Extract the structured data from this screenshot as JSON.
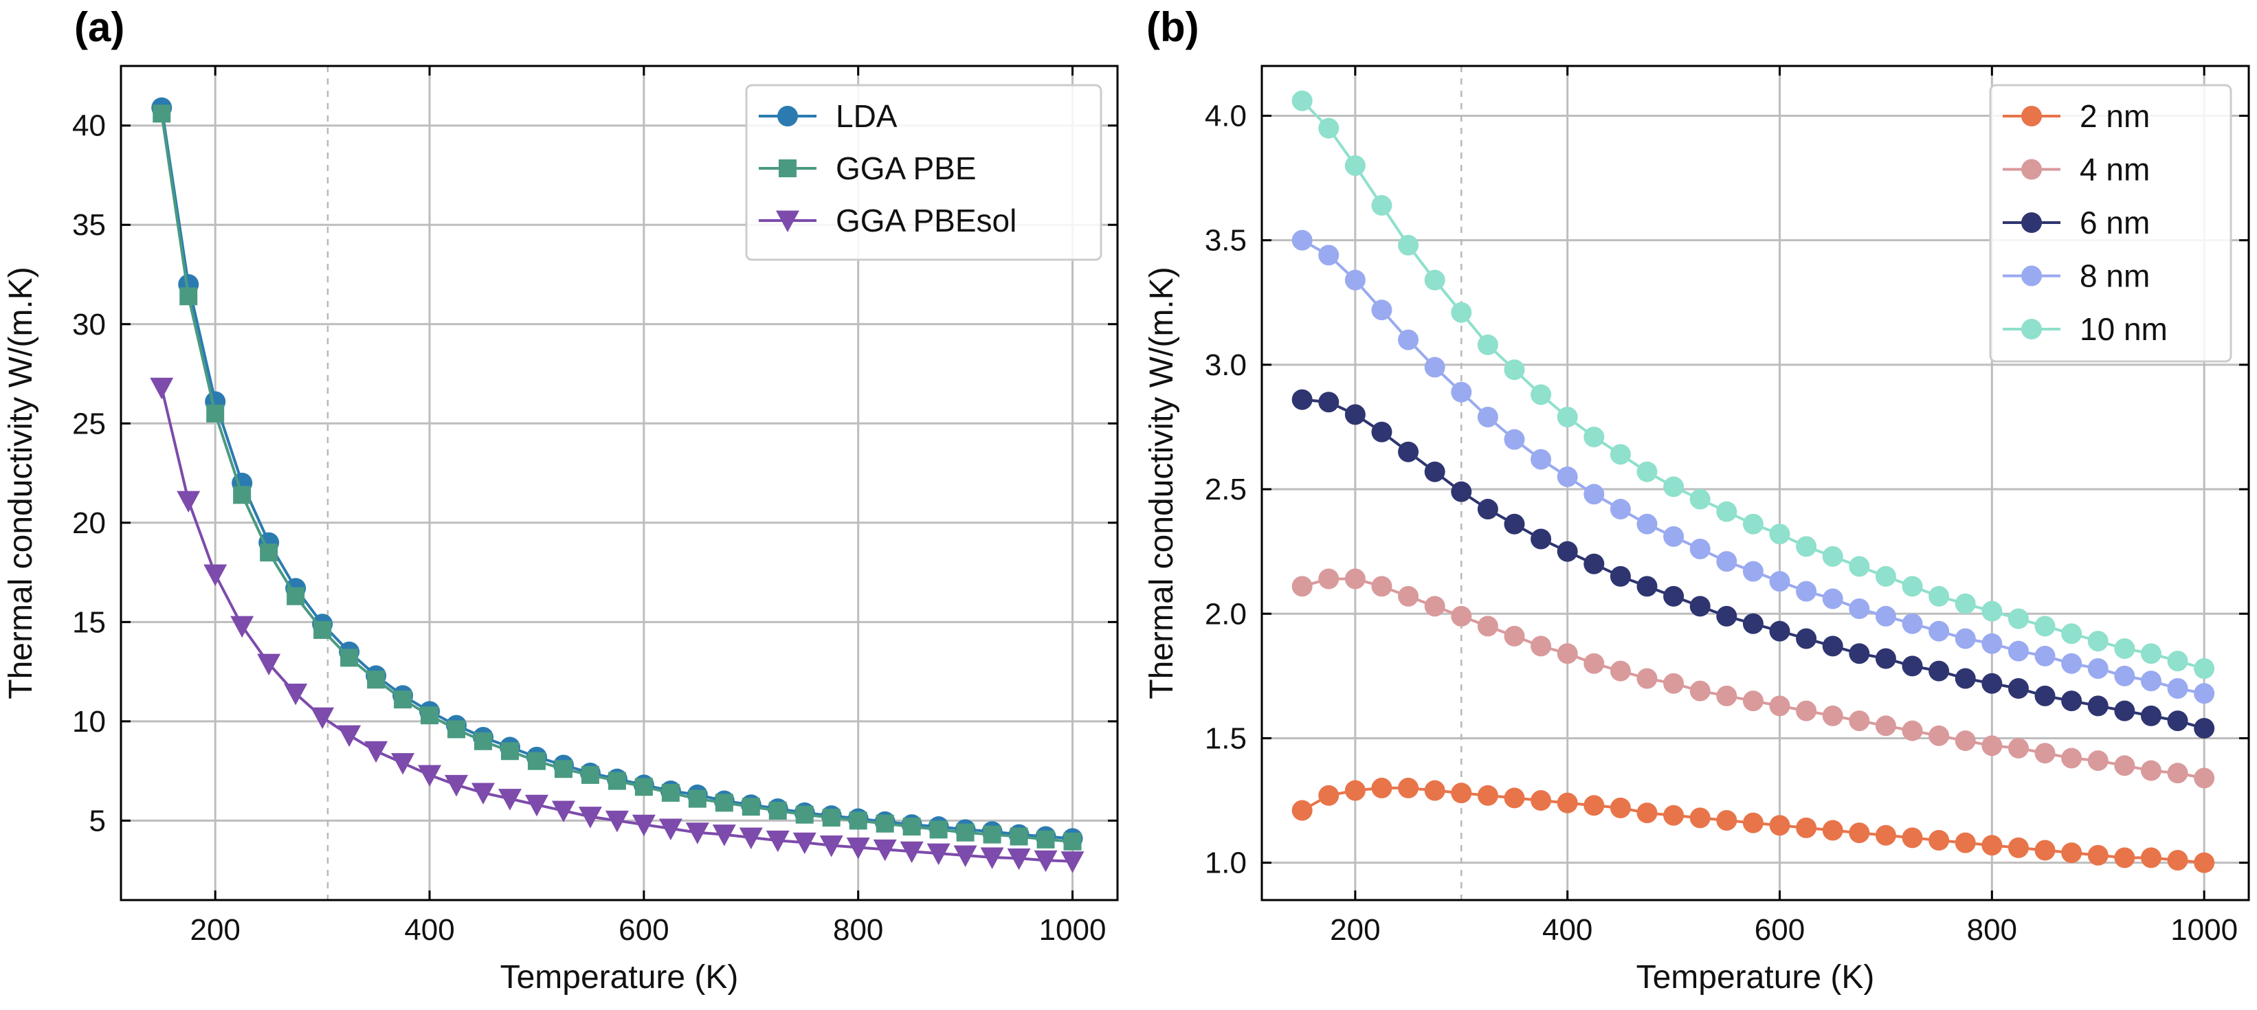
{
  "chart_data": [
    {
      "panel_label": "(a)",
      "type": "line",
      "xlabel": "Temperature (K)",
      "ylabel": "Thermal conductivity W/(m.K)",
      "xlim": [
        112,
        1042
      ],
      "ylim": [
        1,
        43
      ],
      "xticks": [
        200,
        400,
        600,
        800,
        1000
      ],
      "yticks": [
        5,
        10,
        15,
        20,
        25,
        30,
        35,
        40
      ],
      "ref_line_x": 305,
      "legend_position": "top-right",
      "x": [
        150,
        175,
        200,
        225,
        250,
        275,
        300,
        325,
        350,
        375,
        400,
        425,
        450,
        475,
        500,
        525,
        550,
        575,
        600,
        625,
        650,
        675,
        700,
        725,
        750,
        775,
        800,
        825,
        850,
        875,
        900,
        925,
        950,
        975,
        1000
      ],
      "series": [
        {
          "name": "LDA",
          "color": "#2b7bb0",
          "marker": "circle",
          "values": [
            40.9,
            32.0,
            26.1,
            22.0,
            19.0,
            16.7,
            14.9,
            13.5,
            12.3,
            11.3,
            10.5,
            9.8,
            9.2,
            8.7,
            8.2,
            7.8,
            7.4,
            7.1,
            6.8,
            6.5,
            6.3,
            6.0,
            5.8,
            5.6,
            5.4,
            5.25,
            5.1,
            4.95,
            4.8,
            4.7,
            4.55,
            4.45,
            4.3,
            4.2,
            4.1
          ]
        },
        {
          "name": "GGA PBE",
          "color": "#4a9a82",
          "marker": "square",
          "values": [
            40.6,
            31.4,
            25.5,
            21.4,
            18.5,
            16.3,
            14.6,
            13.2,
            12.1,
            11.1,
            10.3,
            9.6,
            9.0,
            8.5,
            8.0,
            7.6,
            7.3,
            7.0,
            6.7,
            6.4,
            6.1,
            5.9,
            5.7,
            5.5,
            5.3,
            5.15,
            5.0,
            4.85,
            4.7,
            4.55,
            4.4,
            4.3,
            4.2,
            4.05,
            3.95
          ]
        },
        {
          "name": "GGA PBEsol",
          "color": "#7d4bab",
          "marker": "triangle-down",
          "values": [
            26.8,
            21.1,
            17.4,
            14.8,
            12.9,
            11.4,
            10.2,
            9.3,
            8.5,
            7.9,
            7.3,
            6.8,
            6.4,
            6.1,
            5.8,
            5.5,
            5.2,
            5.0,
            4.8,
            4.6,
            4.4,
            4.3,
            4.15,
            4.0,
            3.9,
            3.75,
            3.65,
            3.55,
            3.45,
            3.35,
            3.25,
            3.15,
            3.1,
            3.0,
            2.95
          ]
        }
      ]
    },
    {
      "panel_label": "(b)",
      "type": "line",
      "xlabel": "Temperature (K)",
      "ylabel": "Thermal conductivity W/(m.K)",
      "xlim": [
        112,
        1042
      ],
      "ylim": [
        0.85,
        4.2
      ],
      "xticks": [
        200,
        400,
        600,
        800,
        1000
      ],
      "yticks": [
        "1.0",
        "1.5",
        "2.0",
        "2.5",
        "3.0",
        "3.5",
        "4.0"
      ],
      "ref_line_x": 300,
      "legend_position": "top-right",
      "x": [
        150,
        175,
        200,
        225,
        250,
        275,
        300,
        325,
        350,
        375,
        400,
        425,
        450,
        475,
        500,
        525,
        550,
        575,
        600,
        625,
        650,
        675,
        700,
        725,
        750,
        775,
        800,
        825,
        850,
        875,
        900,
        925,
        950,
        975,
        1000
      ],
      "series": [
        {
          "name": "2 nm",
          "color": "#e8744a",
          "marker": "circle",
          "values": [
            1.21,
            1.27,
            1.29,
            1.3,
            1.3,
            1.29,
            1.28,
            1.27,
            1.26,
            1.25,
            1.24,
            1.23,
            1.22,
            1.2,
            1.19,
            1.18,
            1.17,
            1.16,
            1.15,
            1.14,
            1.13,
            1.12,
            1.11,
            1.1,
            1.09,
            1.08,
            1.07,
            1.06,
            1.05,
            1.04,
            1.03,
            1.02,
            1.02,
            1.01,
            1.0
          ]
        },
        {
          "name": "4 nm",
          "color": "#d99a9c",
          "marker": "circle",
          "values": [
            2.11,
            2.14,
            2.14,
            2.11,
            2.07,
            2.03,
            1.99,
            1.95,
            1.91,
            1.87,
            1.84,
            1.8,
            1.77,
            1.74,
            1.72,
            1.69,
            1.67,
            1.65,
            1.63,
            1.61,
            1.59,
            1.57,
            1.55,
            1.53,
            1.51,
            1.49,
            1.47,
            1.46,
            1.44,
            1.42,
            1.41,
            1.39,
            1.37,
            1.36,
            1.34
          ]
        },
        {
          "name": "6 nm",
          "color": "#2e3570",
          "marker": "circle",
          "values": [
            2.86,
            2.85,
            2.8,
            2.73,
            2.65,
            2.57,
            2.49,
            2.42,
            2.36,
            2.3,
            2.25,
            2.2,
            2.15,
            2.11,
            2.07,
            2.03,
            1.99,
            1.96,
            1.93,
            1.9,
            1.87,
            1.84,
            1.82,
            1.79,
            1.77,
            1.74,
            1.72,
            1.7,
            1.67,
            1.65,
            1.63,
            1.61,
            1.59,
            1.57,
            1.54
          ]
        },
        {
          "name": "8 nm",
          "color": "#9aaaf0",
          "marker": "circle",
          "values": [
            3.5,
            3.44,
            3.34,
            3.22,
            3.1,
            2.99,
            2.89,
            2.79,
            2.7,
            2.62,
            2.55,
            2.48,
            2.42,
            2.36,
            2.31,
            2.26,
            2.21,
            2.17,
            2.13,
            2.09,
            2.06,
            2.02,
            1.99,
            1.96,
            1.93,
            1.9,
            1.88,
            1.85,
            1.83,
            1.8,
            1.78,
            1.75,
            1.73,
            1.7,
            1.68
          ]
        },
        {
          "name": "10 nm",
          "color": "#8fe0cc",
          "marker": "circle",
          "values": [
            4.06,
            3.95,
            3.8,
            3.64,
            3.48,
            3.34,
            3.21,
            3.08,
            2.98,
            2.88,
            2.79,
            2.71,
            2.64,
            2.57,
            2.51,
            2.46,
            2.41,
            2.36,
            2.32,
            2.27,
            2.23,
            2.19,
            2.15,
            2.11,
            2.07,
            2.04,
            2.01,
            1.98,
            1.95,
            1.92,
            1.89,
            1.86,
            1.84,
            1.81,
            1.78
          ]
        }
      ]
    }
  ]
}
